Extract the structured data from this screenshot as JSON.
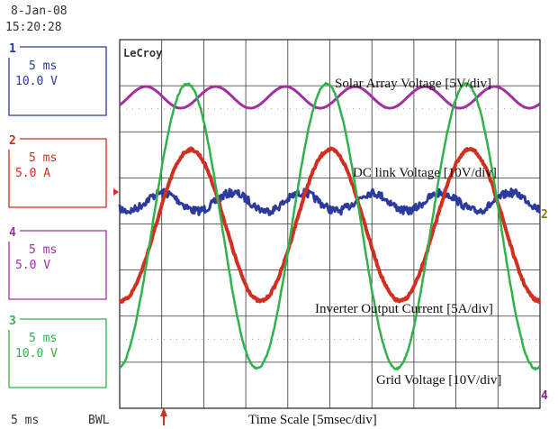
{
  "header": {
    "date": "8-Jan-08",
    "time": "15:20:28"
  },
  "channels": [
    {
      "number": "1",
      "timebase": "5 ms",
      "scale": "10.0 V",
      "color": "#2b3a9c"
    },
    {
      "number": "2",
      "timebase": "5 ms",
      "scale": "5.0 A",
      "color": "#d0301f"
    },
    {
      "number": "4",
      "timebase": "5 ms",
      "scale": "5.0 V",
      "color": "#a2309f"
    },
    {
      "number": "3",
      "timebase": "5 ms",
      "scale": "10.0 V",
      "color": "#2fb34a"
    }
  ],
  "screen": {
    "brand": "LeCroy",
    "labels": [
      "Solar Array Voltage [5V/div]",
      "DC link Voltage [10V/div]",
      "Inverter Output Current [5A/div]",
      "Grid Voltage [10V/div]"
    ],
    "markers": [
      "2",
      "4"
    ]
  },
  "footer": {
    "timebase": "5 ms",
    "bwl": "BWL",
    "caption": "Time Scale [5msec/div]"
  }
}
